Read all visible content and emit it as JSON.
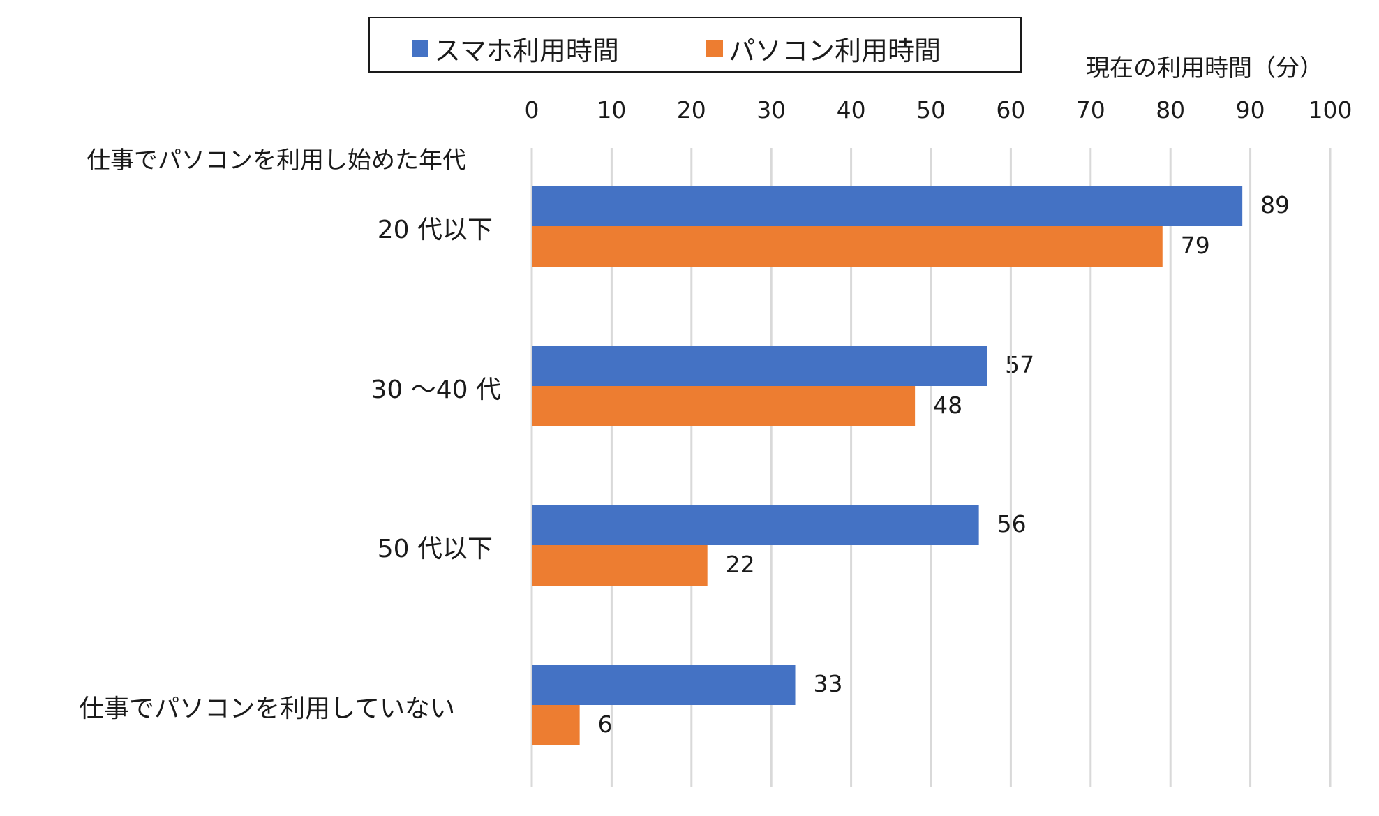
{
  "chart_data": {
    "type": "bar",
    "orientation": "horizontal",
    "title": "",
    "xlabel": "現在の利用時間（分）",
    "ylabel": "仕事でパソコンを利用し始めた年代",
    "xlim": [
      0,
      100
    ],
    "x_ticks": [
      "0",
      "10",
      "20",
      "30",
      "40",
      "50",
      "60",
      "70",
      "80",
      "90",
      "100"
    ],
    "grid": true,
    "legend_position": "top",
    "categories": [
      "20 代以下",
      "30 ～40 代",
      "50 代以下",
      "仕事でパソコンを利用していない"
    ],
    "series": [
      {
        "name": "スマホ利用時間",
        "color": "#4472C4",
        "values": [
          89,
          57,
          56,
          33
        ]
      },
      {
        "name": "パソコン利用時間",
        "color": "#ED7D31",
        "values": [
          79,
          48,
          22,
          6
        ]
      }
    ]
  }
}
